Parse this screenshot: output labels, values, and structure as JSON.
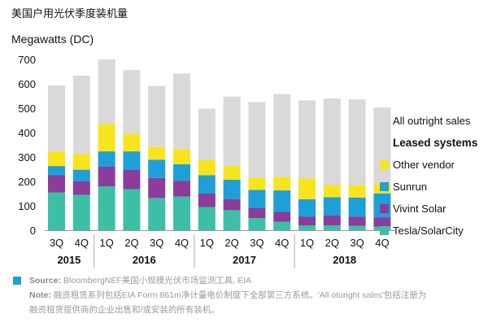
{
  "title": "美国户用光伏季度装机量",
  "chart_data": {
    "type": "bar",
    "stacked": true,
    "ylabel": "Megawatts (DC)",
    "ylim": [
      0,
      700
    ],
    "yticks": [
      0,
      100,
      200,
      300,
      400,
      500,
      600,
      700
    ],
    "grid": false,
    "categories": [
      "3Q",
      "4Q",
      "1Q",
      "2Q",
      "3Q",
      "4Q",
      "1Q",
      "2Q",
      "3Q",
      "4Q",
      "1Q",
      "2Q",
      "3Q",
      "4Q"
    ],
    "years": [
      {
        "label": "2015",
        "start": 0,
        "end": 1
      },
      {
        "label": "2016",
        "start": 2,
        "end": 5
      },
      {
        "label": "2017",
        "start": 6,
        "end": 9
      },
      {
        "label": "2018",
        "start": 10,
        "end": 13
      }
    ],
    "series": [
      {
        "name": "Tesla/SolarCity",
        "color": "#3dbfa6",
        "values": [
          155,
          145,
          180,
          168,
          132,
          138,
          95,
          82,
          50,
          35,
          20,
          20,
          18,
          15
        ]
      },
      {
        "name": "Vivint Solar",
        "color": "#8a3d9a",
        "values": [
          70,
          55,
          80,
          80,
          82,
          65,
          55,
          45,
          40,
          40,
          35,
          40,
          38,
          38
        ]
      },
      {
        "name": "Sunrun",
        "color": "#1e9fd8",
        "values": [
          38,
          48,
          63,
          75,
          75,
          67,
          75,
          80,
          75,
          88,
          72,
          75,
          78,
          98
        ]
      },
      {
        "name": "Other vendor",
        "color": "#f7e41c",
        "values": [
          60,
          65,
          112,
          73,
          52,
          62,
          63,
          56,
          50,
          55,
          85,
          50,
          50,
          40
        ]
      },
      {
        "name": "All outright sales",
        "color": "#d9d9d9",
        "values": [
          270,
          320,
          265,
          260,
          250,
          310,
          210,
          285,
          310,
          340,
          320,
          355,
          352,
          312
        ]
      }
    ],
    "legend": {
      "placement": "right",
      "heading": "Leased systems",
      "items": [
        {
          "name": "All outright sales",
          "color": "#d9d9d9"
        },
        {
          "name": "Other vendor",
          "color": "#f7e41c"
        },
        {
          "name": "Sunrun",
          "color": "#1e9fd8"
        },
        {
          "name": "Vivint Solar",
          "color": "#8a3d9a"
        },
        {
          "name": "Tesla/SolarCity",
          "color": "#3dbfa6"
        }
      ]
    }
  },
  "footer": {
    "source_label": "Source:",
    "source_text": "BloombergNEF美国小规模光伏市场监测工具, EIA",
    "note_label": "Note:",
    "note_text": "融资租赁系列包括EIA Form 861m净计量电价制度下全部第三方系统。'All oturight sales'包括注册为",
    "note_text_2": "融资租赁提供商的企业出售和/或安装的所有装机。"
  }
}
